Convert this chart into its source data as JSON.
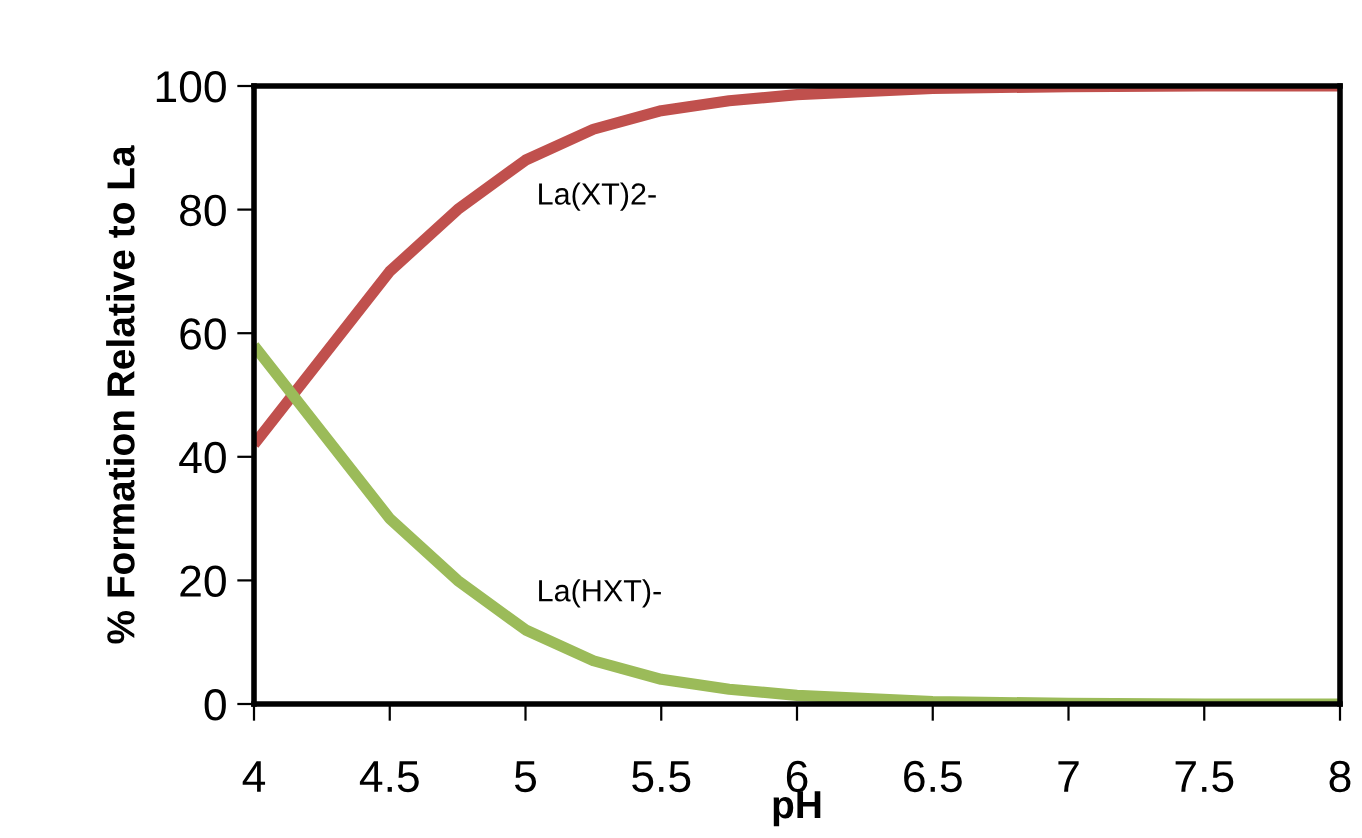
{
  "chart_data": {
    "type": "line",
    "xlabel": "pH",
    "ylabel": "% Formation Relative to La",
    "x": [
      4,
      4.25,
      4.5,
      4.75,
      5,
      5.25,
      5.5,
      5.75,
      6,
      6.5,
      7,
      7.5,
      8
    ],
    "series": [
      {
        "name": "La(XT)2-",
        "color": "#c0504d",
        "values": [
          42,
          56,
          70,
          80,
          88,
          93,
          96,
          97.6,
          98.6,
          99.6,
          99.9,
          100,
          100
        ]
      },
      {
        "name": "La(HXT)-",
        "color": "#9bbb59",
        "values": [
          58,
          44,
          30,
          20,
          12,
          7,
          4,
          2.4,
          1.4,
          0.4,
          0.1,
          0,
          0
        ]
      }
    ],
    "xlim": [
      4,
      8
    ],
    "ylim": [
      0,
      100
    ],
    "xticks": [
      4,
      4.5,
      5,
      5.5,
      6,
      6.5,
      7,
      7.5,
      8
    ],
    "yticks": [
      0,
      20,
      40,
      60,
      80,
      100
    ],
    "grid": false,
    "legend": false,
    "marker": "none",
    "line_style": "solid"
  }
}
